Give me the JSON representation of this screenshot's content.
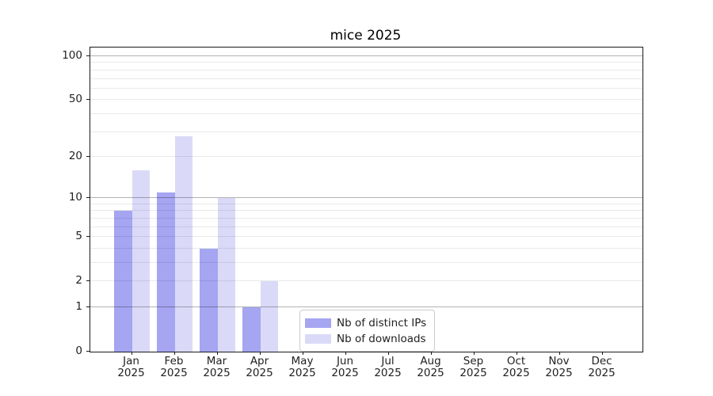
{
  "chart_data": {
    "type": "bar",
    "title": "mice 2025",
    "categories": [
      "Jan 2025",
      "Feb 2025",
      "Mar 2025",
      "Apr 2025",
      "May 2025",
      "Jun 2025",
      "Jul 2025",
      "Aug 2025",
      "Sep 2025",
      "Oct 2025",
      "Nov 2025",
      "Dec 2025"
    ],
    "series": [
      {
        "name": "Nb of distinct IPs",
        "color": "#a5a5f2",
        "values": [
          8,
          11,
          4,
          1,
          0,
          0,
          0,
          0,
          0,
          0,
          0,
          0
        ]
      },
      {
        "name": "Nb of downloads",
        "color": "#dadaf8",
        "values": [
          16,
          28,
          10,
          2,
          0,
          0,
          0,
          0,
          0,
          0,
          0,
          0
        ]
      }
    ],
    "xlabel": "",
    "ylabel": "",
    "yaxis": {
      "scale": "log1p",
      "ticks": [
        0,
        1,
        2,
        5,
        10,
        20,
        50,
        100
      ],
      "major_gridlines": [
        1,
        10,
        100
      ],
      "minor_gridlines": [
        2,
        3,
        4,
        5,
        6,
        7,
        8,
        9,
        20,
        30,
        40,
        50,
        60,
        70,
        80,
        90
      ],
      "range_top": 114
    },
    "grid": true,
    "legend_position": "inside-bottom-center",
    "colors": {
      "axis": "#1a1a1a",
      "text": "#1f1f1f",
      "major_grid": "rgba(0,0,0,0.30)",
      "minor_grid": "rgba(0,0,0,0.085)",
      "legend_border": "#cccccc"
    }
  }
}
